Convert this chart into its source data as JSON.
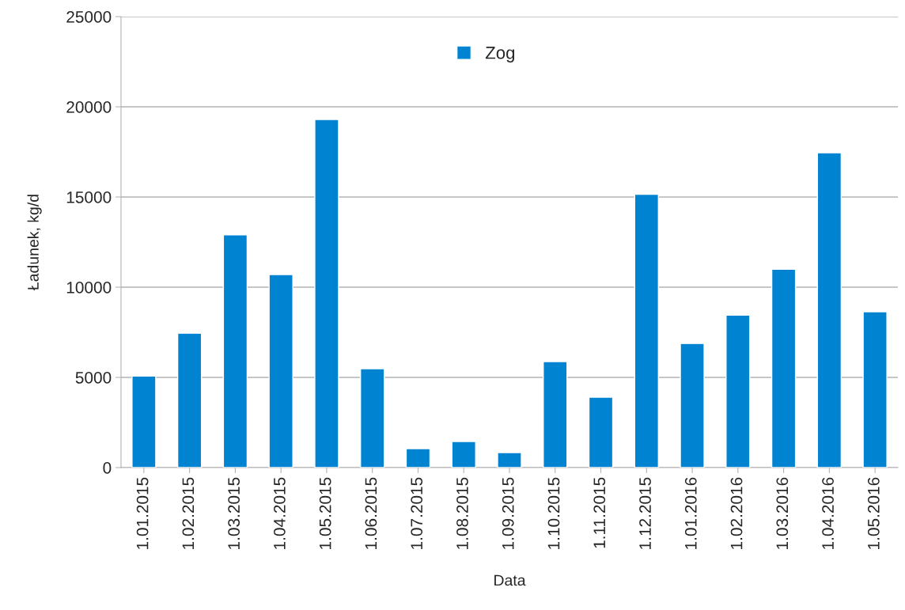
{
  "chart_data": {
    "type": "bar",
    "xlabel": "Data",
    "ylabel": "Ładunek, kg/d",
    "categories": [
      "1.01.2015",
      "1.02.2015",
      "1.03.2015",
      "1.04.2015",
      "1.05.2015",
      "1.06.2015",
      "1.07.2015",
      "1.08.2015",
      "1.09.2015",
      "1.10.2015",
      "1.11.2015",
      "1.12.2015",
      "1.01.2016",
      "1.02.2016",
      "1.03.2016",
      "1.04.2016",
      "1.05.2016"
    ],
    "series": [
      {
        "name": "Zog",
        "color": "#0084d1",
        "values": [
          5070,
          7450,
          12900,
          10700,
          19300,
          5480,
          1050,
          1450,
          830,
          5880,
          3900,
          15150,
          6880,
          8450,
          11000,
          17450,
          8640
        ]
      }
    ],
    "ylim": [
      0,
      25000
    ],
    "yticks": [
      0,
      5000,
      10000,
      15000,
      20000,
      25000
    ],
    "grid": "y",
    "legend": "top"
  }
}
